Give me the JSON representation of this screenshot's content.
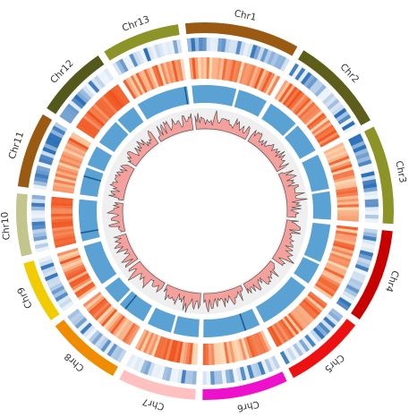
{
  "chromosomes": [
    {
      "name": "Chr1",
      "color": "#9a5a12",
      "size": 44
    },
    {
      "name": "Chr2",
      "color": "#5c5e1a",
      "size": 37
    },
    {
      "name": "Chr3",
      "color": "#8d9427",
      "size": 38
    },
    {
      "name": "Chr4",
      "color": "#c80000",
      "size": 36
    },
    {
      "name": "Chr5",
      "color": "#ee1111",
      "size": 31
    },
    {
      "name": "Chr6",
      "color": "#ee11cc",
      "size": 33
    },
    {
      "name": "Chr7",
      "color": "#ffc0c0",
      "size": 30
    },
    {
      "name": "Chr8",
      "color": "#f08c00",
      "size": 29
    },
    {
      "name": "Chr9",
      "color": "#f0cc00",
      "size": 24
    },
    {
      "name": "Chr10",
      "color": "#c2c68c",
      "size": 24
    },
    {
      "name": "Chr11",
      "color": "#9a5a12",
      "size": 29
    },
    {
      "name": "Chr12",
      "color": "#54581a",
      "size": 28
    },
    {
      "name": "Chr13",
      "color": "#8d9427",
      "size": 30
    }
  ],
  "tracks": {
    "heatmap_blue": {
      "low": "#eef4fb",
      "high": "#2a6fb8"
    },
    "heatmap_orange": {
      "low": "#fdd9b5",
      "high": "#f0521c"
    },
    "blocks": {
      "color": "#5aa2d4"
    },
    "histogram": {
      "fill": "#f4a09c",
      "line": "#444444",
      "background": "#efefef"
    }
  }
}
